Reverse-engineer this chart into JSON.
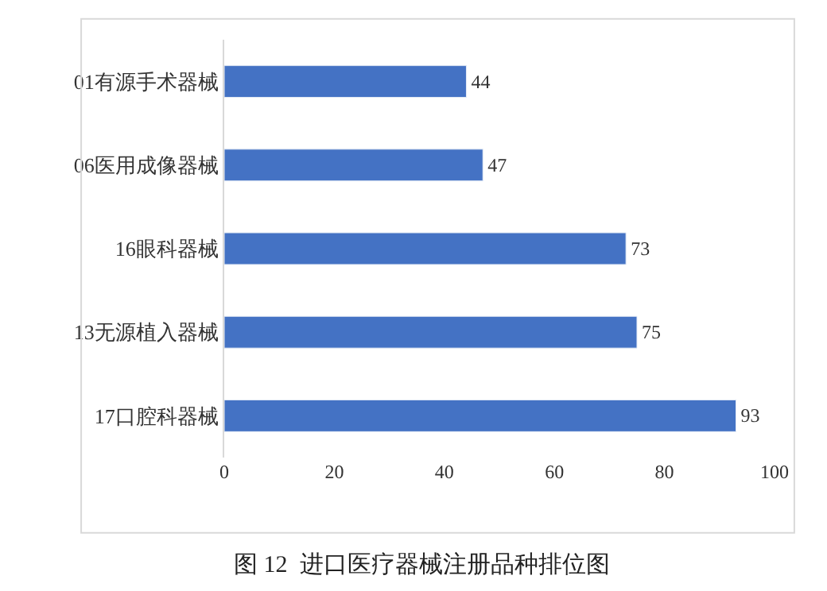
{
  "chart_data": {
    "type": "bar",
    "orientation": "horizontal",
    "categories": [
      "01有源手术器械",
      "06医用成像器械",
      "16眼科器械",
      "13无源植入器械",
      "17口腔科器械"
    ],
    "values": [
      44,
      47,
      73,
      75,
      93
    ],
    "color": "#4472c4",
    "xlim": [
      0,
      100
    ],
    "xticks": [
      0,
      20,
      40,
      60,
      80,
      100
    ],
    "data_labels": true,
    "annotations": [
      "图 12  进口医疗器械注册品种排位图"
    ]
  }
}
